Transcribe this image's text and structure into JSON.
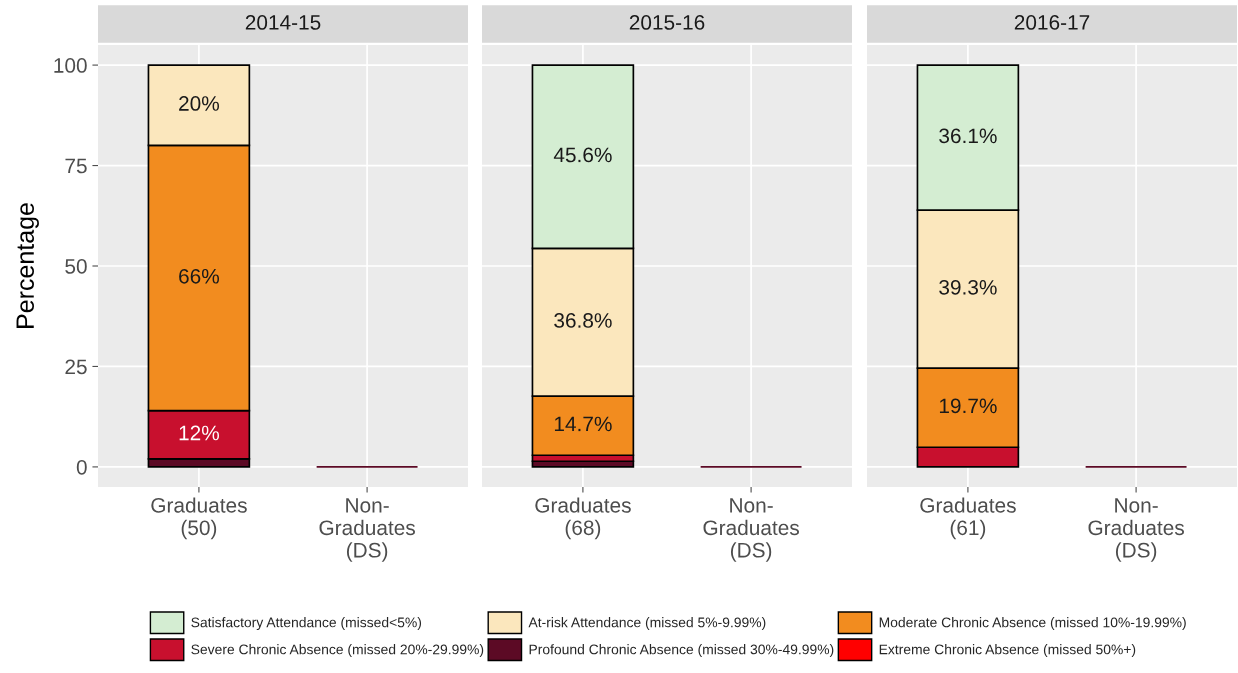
{
  "chart_data": [
    {
      "type": "bar",
      "title": "2014-15",
      "ylabel": "Percentage",
      "stacked": true,
      "categories": [
        "Graduates\n(50)",
        "Non-\nGraduates\n(DS)"
      ],
      "ylim": [
        -5,
        105
      ],
      "yticks": [
        0,
        25,
        50,
        75,
        100
      ],
      "grid": true,
      "legend": "bottom",
      "series": [
        {
          "name": "Extreme Chronic Absence (missed 50%+)",
          "color": "#ff0000",
          "values": [
            null,
            null
          ],
          "value_labels": [
            null,
            null
          ]
        },
        {
          "name": "Profound Chronic Absence (missed 30%-49.99%)",
          "color": "#5c0a25",
          "values": [
            2,
            0
          ],
          "value_labels": [
            null,
            null
          ]
        },
        {
          "name": "Severe Chronic Absence (missed 20%-29.99%)",
          "color": "#c8102e",
          "values": [
            12,
            null
          ],
          "value_labels": [
            "12%",
            null
          ]
        },
        {
          "name": "Moderate Chronic Absence (missed 10%-19.99%)",
          "color": "#f28c1f",
          "values": [
            66,
            null
          ],
          "value_labels": [
            "66%",
            null
          ]
        },
        {
          "name": "At-risk Attendance (missed 5%-9.99%)",
          "color": "#fbe7bd",
          "values": [
            20,
            null
          ],
          "value_labels": [
            "20%",
            null
          ]
        },
        {
          "name": "Satisfactory Attendance (missed<5%)",
          "color": "#d4edd2",
          "values": [
            null,
            null
          ],
          "value_labels": [
            null,
            null
          ]
        }
      ]
    },
    {
      "type": "bar",
      "title": "2015-16",
      "stacked": true,
      "categories": [
        "Graduates\n(68)",
        "Non-\nGraduates\n(DS)"
      ],
      "ylim": [
        -5,
        105
      ],
      "yticks": [
        0,
        25,
        50,
        75,
        100
      ],
      "grid": true,
      "tick_labels": "x",
      "series": [
        {
          "color": "#5c0a25",
          "values": [
            1.4,
            0
          ],
          "value_labels": [
            null,
            null
          ]
        },
        {
          "color": "#c8102e",
          "values": [
            1.5,
            null
          ],
          "value_labels": [
            null,
            null
          ]
        },
        {
          "color": "#f28c1f",
          "values": [
            14.7,
            null
          ],
          "value_labels": [
            "14.7%",
            null
          ]
        },
        {
          "color": "#fbe7bd",
          "values": [
            36.8,
            null
          ],
          "value_labels": [
            "36.8%",
            null
          ]
        },
        {
          "color": "#d4edd2",
          "values": [
            45.6,
            null
          ],
          "value_labels": [
            "45.6%",
            null
          ]
        }
      ]
    },
    {
      "type": "bar",
      "title": "2016-17",
      "stacked": true,
      "categories": [
        "Graduates\n(61)",
        "Non-\nGraduates\n(DS)"
      ],
      "ylim": [
        -5,
        105
      ],
      "yticks": [
        0,
        25,
        50,
        75,
        100
      ],
      "grid": true,
      "tick_labels": "x",
      "series": [
        {
          "color": "#5c0a25",
          "values": [
            null,
            0
          ],
          "value_labels": [
            null,
            null
          ]
        },
        {
          "color": "#c8102e",
          "values": [
            4.9,
            null
          ],
          "value_labels": [
            null,
            null
          ]
        },
        {
          "color": "#f28c1f",
          "values": [
            19.7,
            null
          ],
          "value_labels": [
            "19.7%",
            null
          ]
        },
        {
          "color": "#fbe7bd",
          "values": [
            39.3,
            null
          ],
          "value_labels": [
            "39.3%",
            null
          ]
        },
        {
          "color": "#d4edd2",
          "values": [
            36.1,
            null
          ],
          "value_labels": [
            "36.1%",
            null
          ]
        }
      ]
    }
  ]
}
